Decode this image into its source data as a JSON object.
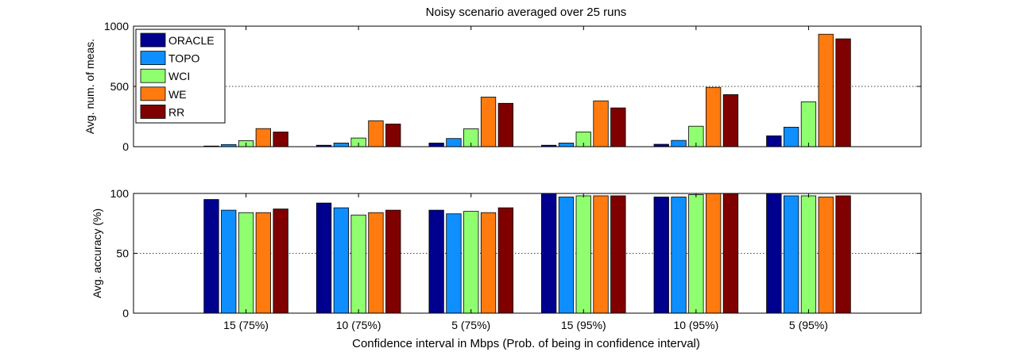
{
  "figure_title": "Noisy scenario averaged over 25 runs",
  "chart_data": [
    {
      "type": "bar",
      "title": "Noisy scenario averaged over 25 runs",
      "xlabel": "",
      "ylabel": "Avg. num. of meas.",
      "ylim": [
        0,
        1000
      ],
      "yticks": [
        0,
        500,
        1000
      ],
      "grid": "horizontal dotted at 500",
      "legend_position": "top-left",
      "categories": [
        "15 (75%)",
        "10 (75%)",
        "5 (75%)",
        "15 (95%)",
        "10 (95%)",
        "5 (95%)"
      ],
      "series": [
        {
          "name": "ORACLE",
          "color": "#00008f",
          "values": [
            5,
            12,
            30,
            12,
            20,
            90
          ]
        },
        {
          "name": "TOPO",
          "color": "#0f8fff",
          "values": [
            18,
            30,
            68,
            30,
            52,
            162
          ]
        },
        {
          "name": "WCI",
          "color": "#8fff70",
          "values": [
            50,
            72,
            148,
            122,
            170,
            372
          ]
        },
        {
          "name": "WE",
          "color": "#ff7a0f",
          "values": [
            150,
            215,
            412,
            380,
            492,
            933
          ]
        },
        {
          "name": "RR",
          "color": "#800000",
          "values": [
            122,
            188,
            360,
            322,
            432,
            895
          ]
        }
      ]
    },
    {
      "type": "bar",
      "title": "",
      "xlabel": "Confidence interval in Mbps (Prob. of being in confidence interval)",
      "ylabel": "Avg. accuracy (%)",
      "ylim": [
        0,
        100
      ],
      "yticks": [
        0,
        50,
        100
      ],
      "grid": "horizontal dotted at 50",
      "categories": [
        "15 (75%)",
        "10 (75%)",
        "5 (75%)",
        "15 (95%)",
        "10 (95%)",
        "5 (95%)"
      ],
      "series": [
        {
          "name": "ORACLE",
          "color": "#00008f",
          "values": [
            95,
            92,
            86,
            100,
            97,
            100
          ]
        },
        {
          "name": "TOPO",
          "color": "#0f8fff",
          "values": [
            86,
            88,
            83,
            97,
            97,
            98
          ]
        },
        {
          "name": "WCI",
          "color": "#8fff70",
          "values": [
            84,
            82,
            85,
            98,
            99,
            98
          ]
        },
        {
          "name": "WE",
          "color": "#ff7a0f",
          "values": [
            84,
            84,
            84,
            98,
            100,
            97
          ]
        },
        {
          "name": "RR",
          "color": "#800000",
          "values": [
            87,
            86,
            88,
            98,
            100,
            98
          ]
        }
      ]
    }
  ]
}
